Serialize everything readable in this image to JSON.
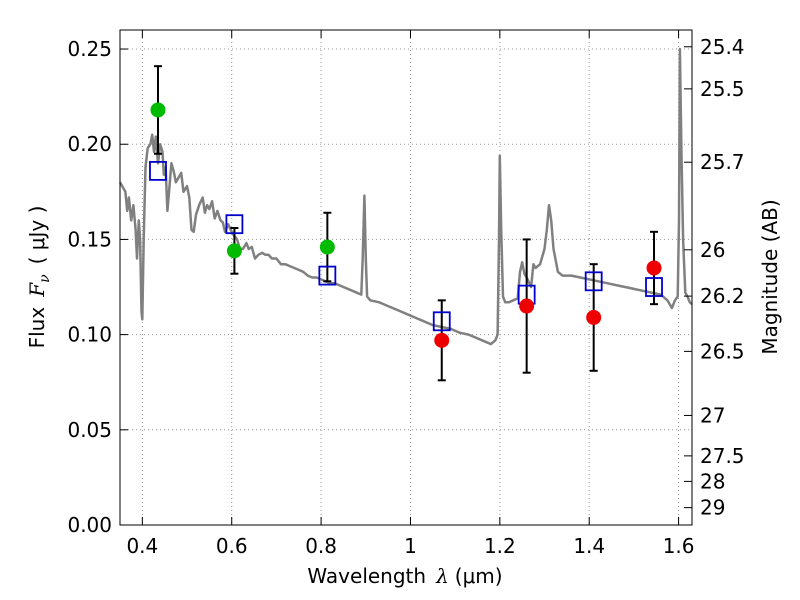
{
  "chart_data": {
    "type": "scatter",
    "xlabel": {
      "text": "Wavelength",
      "symbol": "λ",
      "unit": "(μm)"
    },
    "ylabel": {
      "text": "Flux",
      "symbol": "F",
      "subscript": "ν",
      "unit": "( μJy )"
    },
    "ylabel_right": "Magnitude (AB)",
    "xlim": [
      0.35,
      1.63
    ],
    "ylim": [
      0.0,
      0.26
    ],
    "x_ticks": [
      0.4,
      0.6,
      0.8,
      1.0,
      1.2,
      1.4,
      1.6
    ],
    "x_tick_labels": [
      "0.4",
      "0.6",
      "0.8",
      "1",
      "1.2",
      "1.4",
      "1.6"
    ],
    "y_ticks": [
      0.0,
      0.05,
      0.1,
      0.15,
      0.2,
      0.25
    ],
    "y_tick_labels": [
      "0.00",
      "0.05",
      "0.10",
      "0.15",
      "0.20",
      "0.25"
    ],
    "mag_ticks": [
      25.4,
      25.5,
      25.7,
      26,
      26.2,
      26.5,
      27,
      27.5,
      28,
      29
    ],
    "mag_tick_labels": [
      "25.4",
      "25.5",
      "25.7",
      "26",
      "26.2",
      "26.5",
      "27",
      "27.5",
      "28",
      "29"
    ],
    "grid": true,
    "colors": {
      "model_line": "#808080",
      "green_points": "#00bb00",
      "red_points": "#ee0000",
      "model_boxes": "#0000cc",
      "error_bars": "#000000"
    },
    "series": [
      {
        "marker": "circle",
        "color": "green",
        "points": [
          {
            "x": 0.435,
            "y": 0.218,
            "err": 0.023
          },
          {
            "x": 0.606,
            "y": 0.144,
            "err": 0.012
          },
          {
            "x": 0.814,
            "y": 0.146,
            "err": 0.018
          }
        ]
      },
      {
        "marker": "circle",
        "color": "red",
        "points": [
          {
            "x": 1.07,
            "y": 0.097,
            "err": 0.021
          },
          {
            "x": 1.26,
            "y": 0.115,
            "err": 0.035
          },
          {
            "x": 1.41,
            "y": 0.109,
            "err": 0.028
          },
          {
            "x": 1.545,
            "y": 0.135,
            "err": 0.019
          }
        ]
      },
      {
        "marker": "square",
        "color": "blue",
        "points": [
          {
            "x": 0.435,
            "y": 0.186
          },
          {
            "x": 0.606,
            "y": 0.158
          },
          {
            "x": 0.814,
            "y": 0.131
          },
          {
            "x": 1.07,
            "y": 0.107
          },
          {
            "x": 1.26,
            "y": 0.121
          },
          {
            "x": 1.41,
            "y": 0.128
          },
          {
            "x": 1.545,
            "y": 0.125
          }
        ]
      },
      {
        "marker": "line",
        "color": "gray",
        "points": [
          [
            0.35,
            0.18
          ],
          [
            0.362,
            0.175
          ],
          [
            0.366,
            0.165
          ],
          [
            0.37,
            0.172
          ],
          [
            0.375,
            0.16
          ],
          [
            0.38,
            0.168
          ],
          [
            0.385,
            0.155
          ],
          [
            0.388,
            0.14
          ],
          [
            0.392,
            0.16
          ],
          [
            0.395,
            0.15
          ],
          [
            0.398,
            0.112
          ],
          [
            0.4,
            0.108
          ],
          [
            0.403,
            0.15
          ],
          [
            0.407,
            0.188
          ],
          [
            0.412,
            0.198
          ],
          [
            0.418,
            0.2
          ],
          [
            0.422,
            0.205
          ],
          [
            0.426,
            0.196
          ],
          [
            0.43,
            0.204
          ],
          [
            0.435,
            0.19
          ],
          [
            0.44,
            0.2
          ],
          [
            0.445,
            0.196
          ],
          [
            0.448,
            0.184
          ],
          [
            0.452,
            0.188
          ],
          [
            0.456,
            0.165
          ],
          [
            0.46,
            0.176
          ],
          [
            0.465,
            0.19
          ],
          [
            0.47,
            0.186
          ],
          [
            0.475,
            0.18
          ],
          [
            0.48,
            0.182
          ],
          [
            0.487,
            0.185
          ],
          [
            0.492,
            0.175
          ],
          [
            0.5,
            0.178
          ],
          [
            0.505,
            0.172
          ],
          [
            0.51,
            0.155
          ],
          [
            0.515,
            0.154
          ],
          [
            0.52,
            0.163
          ],
          [
            0.527,
            0.168
          ],
          [
            0.535,
            0.172
          ],
          [
            0.54,
            0.164
          ],
          [
            0.545,
            0.168
          ],
          [
            0.55,
            0.166
          ],
          [
            0.556,
            0.17
          ],
          [
            0.562,
            0.161
          ],
          [
            0.568,
            0.165
          ],
          [
            0.575,
            0.16
          ],
          [
            0.58,
            0.159
          ],
          [
            0.585,
            0.154
          ],
          [
            0.592,
            0.158
          ],
          [
            0.6,
            0.154
          ],
          [
            0.605,
            0.152
          ],
          [
            0.612,
            0.15
          ],
          [
            0.618,
            0.145
          ],
          [
            0.625,
            0.145
          ],
          [
            0.633,
            0.148
          ],
          [
            0.638,
            0.145
          ],
          [
            0.645,
            0.146
          ],
          [
            0.652,
            0.14
          ],
          [
            0.66,
            0.142
          ],
          [
            0.668,
            0.143
          ],
          [
            0.675,
            0.142
          ],
          [
            0.682,
            0.142
          ],
          [
            0.69,
            0.14
          ],
          [
            0.7,
            0.14
          ],
          [
            0.71,
            0.137
          ],
          [
            0.72,
            0.137
          ],
          [
            0.73,
            0.136
          ],
          [
            0.74,
            0.135
          ],
          [
            0.75,
            0.134
          ],
          [
            0.76,
            0.133
          ],
          [
            0.77,
            0.131
          ],
          [
            0.78,
            0.13
          ],
          [
            0.79,
            0.13
          ],
          [
            0.8,
            0.129
          ],
          [
            0.81,
            0.128
          ],
          [
            0.82,
            0.127
          ],
          [
            0.83,
            0.127
          ],
          [
            0.84,
            0.126
          ],
          [
            0.85,
            0.125
          ],
          [
            0.86,
            0.124
          ],
          [
            0.87,
            0.123
          ],
          [
            0.88,
            0.122
          ],
          [
            0.89,
            0.121
          ],
          [
            0.893,
            0.14
          ],
          [
            0.897,
            0.173
          ],
          [
            0.9,
            0.14
          ],
          [
            0.903,
            0.12
          ],
          [
            0.91,
            0.118
          ],
          [
            0.93,
            0.117
          ],
          [
            0.95,
            0.115
          ],
          [
            0.97,
            0.113
          ],
          [
            0.99,
            0.111
          ],
          [
            1.01,
            0.109
          ],
          [
            1.03,
            0.107
          ],
          [
            1.05,
            0.105
          ],
          [
            1.07,
            0.104
          ],
          [
            1.09,
            0.103
          ],
          [
            1.11,
            0.101
          ],
          [
            1.13,
            0.1
          ],
          [
            1.15,
            0.098
          ],
          [
            1.17,
            0.096
          ],
          [
            1.18,
            0.095
          ],
          [
            1.19,
            0.097
          ],
          [
            1.195,
            0.1
          ],
          [
            1.198,
            0.15
          ],
          [
            1.2,
            0.194
          ],
          [
            1.203,
            0.155
          ],
          [
            1.207,
            0.12
          ],
          [
            1.212,
            0.117
          ],
          [
            1.22,
            0.117
          ],
          [
            1.23,
            0.118
          ],
          [
            1.24,
            0.119
          ],
          [
            1.245,
            0.133
          ],
          [
            1.25,
            0.138
          ],
          [
            1.255,
            0.132
          ],
          [
            1.26,
            0.13
          ],
          [
            1.27,
            0.125
          ],
          [
            1.275,
            0.137
          ],
          [
            1.28,
            0.135
          ],
          [
            1.29,
            0.137
          ],
          [
            1.3,
            0.145
          ],
          [
            1.305,
            0.155
          ],
          [
            1.31,
            0.168
          ],
          [
            1.315,
            0.16
          ],
          [
            1.32,
            0.145
          ],
          [
            1.33,
            0.133
          ],
          [
            1.34,
            0.131
          ],
          [
            1.36,
            0.131
          ],
          [
            1.38,
            0.13
          ],
          [
            1.4,
            0.129
          ],
          [
            1.42,
            0.128
          ],
          [
            1.44,
            0.127
          ],
          [
            1.46,
            0.126
          ],
          [
            1.48,
            0.125
          ],
          [
            1.5,
            0.124
          ],
          [
            1.52,
            0.123
          ],
          [
            1.54,
            0.122
          ],
          [
            1.56,
            0.121
          ],
          [
            1.575,
            0.118
          ],
          [
            1.585,
            0.114
          ],
          [
            1.592,
            0.118
          ],
          [
            1.598,
            0.12
          ],
          [
            1.601,
            0.16
          ],
          [
            1.603,
            0.25
          ],
          [
            1.606,
            0.2
          ],
          [
            1.61,
            0.15
          ],
          [
            1.615,
            0.122
          ],
          [
            1.62,
            0.12
          ],
          [
            1.625,
            0.117
          ],
          [
            1.63,
            0.116
          ]
        ]
      }
    ]
  }
}
